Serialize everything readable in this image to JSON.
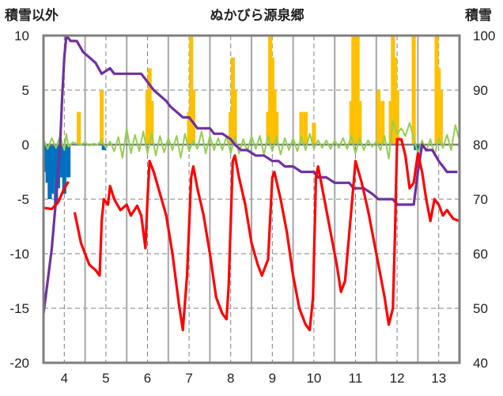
{
  "chart_data": {
    "type": "line",
    "title": "ぬかびら源泉郷",
    "left_axis_label": "積雪以外",
    "right_axis_label": "積雪",
    "x_ticks": [
      "4",
      "5",
      "6",
      "7",
      "8",
      "9",
      "10",
      "11",
      "12",
      "13"
    ],
    "y_left_ticks": [
      "10",
      "5",
      "0",
      "-5",
      "-10",
      "-15",
      "-20"
    ],
    "y_right_ticks": [
      "100",
      "90",
      "80",
      "70",
      "60",
      "50",
      "40"
    ],
    "xlim": [
      3.5,
      13.5
    ],
    "ylim_left": [
      -20,
      10
    ],
    "ylim_right": [
      40,
      100
    ],
    "grid": true,
    "colors": {
      "temperature": "#ff0000",
      "snow_depth": "#7030a0",
      "snowfall": "#ffc000",
      "rainfall": "#0070c0",
      "variation": "#92d050",
      "frame": "#7f7f7f",
      "grid": "#808080"
    },
    "series": [
      {
        "key": "temperature",
        "axis": "left",
        "values": [
          [
            3.5,
            -5.8
          ],
          [
            3.7,
            -5.9
          ],
          [
            3.85,
            -5.3
          ],
          [
            4.0,
            -4.0
          ],
          [
            4.1,
            -3.4
          ],
          [
            4.25,
            -6.2
          ],
          [
            4.4,
            -9.0
          ],
          [
            4.6,
            -11.0
          ],
          [
            4.75,
            -11.5
          ],
          [
            4.85,
            -12.0
          ],
          [
            4.9,
            -7.0
          ],
          [
            4.95,
            -5.0
          ],
          [
            5.05,
            -5.5
          ],
          [
            5.1,
            -3.8
          ],
          [
            5.2,
            -5.0
          ],
          [
            5.35,
            -6.0
          ],
          [
            5.5,
            -5.5
          ],
          [
            5.6,
            -6.5
          ],
          [
            5.75,
            -5.6
          ],
          [
            5.85,
            -6.5
          ],
          [
            5.95,
            -9.5
          ],
          [
            6.0,
            -5.0
          ],
          [
            6.05,
            -1.5
          ],
          [
            6.15,
            -2.5
          ],
          [
            6.3,
            -4.5
          ],
          [
            6.45,
            -6.5
          ],
          [
            6.6,
            -10.0
          ],
          [
            6.75,
            -14.5
          ],
          [
            6.85,
            -17.0
          ],
          [
            6.95,
            -12.0
          ],
          [
            7.05,
            -3.0
          ],
          [
            7.1,
            -2.0
          ],
          [
            7.2,
            -4.0
          ],
          [
            7.35,
            -6.5
          ],
          [
            7.5,
            -10.0
          ],
          [
            7.65,
            -14.0
          ],
          [
            7.8,
            -15.5
          ],
          [
            7.9,
            -16.0
          ],
          [
            7.95,
            -13.0
          ],
          [
            8.05,
            -1.5
          ],
          [
            8.1,
            -1.0
          ],
          [
            8.2,
            -3.0
          ],
          [
            8.35,
            -5.5
          ],
          [
            8.5,
            -9.0
          ],
          [
            8.65,
            -11.0
          ],
          [
            8.75,
            -12.0
          ],
          [
            8.9,
            -10.5
          ],
          [
            9.0,
            -3.0
          ],
          [
            9.05,
            -2.5
          ],
          [
            9.2,
            -5.0
          ],
          [
            9.35,
            -8.0
          ],
          [
            9.5,
            -12.0
          ],
          [
            9.65,
            -15.0
          ],
          [
            9.8,
            -16.5
          ],
          [
            9.9,
            -17.0
          ],
          [
            9.98,
            -14.0
          ],
          [
            10.05,
            -3.0
          ],
          [
            10.1,
            -2.0
          ],
          [
            10.25,
            -5.0
          ],
          [
            10.4,
            -8.0
          ],
          [
            10.55,
            -11.0
          ],
          [
            10.65,
            -13.5
          ],
          [
            10.75,
            -12.5
          ],
          [
            10.9,
            -6.0
          ],
          [
            11.0,
            -1.5
          ],
          [
            11.15,
            -3.5
          ],
          [
            11.3,
            -6.0
          ],
          [
            11.45,
            -9.0
          ],
          [
            11.6,
            -12.0
          ],
          [
            11.7,
            -14.0
          ],
          [
            11.8,
            -16.5
          ],
          [
            11.9,
            -15.0
          ],
          [
            11.95,
            -8.0
          ],
          [
            12.0,
            0.5
          ],
          [
            12.1,
            0.5
          ],
          [
            12.2,
            -1.0
          ],
          [
            12.3,
            -4.0
          ],
          [
            12.4,
            -3.5
          ],
          [
            12.5,
            -0.8
          ],
          [
            12.6,
            -2.5
          ],
          [
            12.7,
            -5.0
          ],
          [
            12.8,
            -7.0
          ],
          [
            12.9,
            -5.0
          ],
          [
            13.0,
            -5.5
          ],
          [
            13.1,
            -6.5
          ],
          [
            13.2,
            -6.0
          ],
          [
            13.35,
            -6.8
          ],
          [
            13.5,
            -7.0
          ]
        ]
      },
      {
        "key": "snow_depth",
        "axis": "right",
        "values": [
          [
            3.5,
            49
          ],
          [
            3.6,
            55
          ],
          [
            3.7,
            61
          ],
          [
            3.8,
            70
          ],
          [
            3.9,
            80
          ],
          [
            3.95,
            89
          ],
          [
            4.0,
            96
          ],
          [
            4.05,
            100
          ],
          [
            4.15,
            99
          ],
          [
            4.3,
            99
          ],
          [
            4.45,
            97
          ],
          [
            4.6,
            96
          ],
          [
            4.75,
            95
          ],
          [
            4.9,
            93
          ],
          [
            5.1,
            94
          ],
          [
            5.2,
            93
          ],
          [
            5.3,
            93
          ],
          [
            5.4,
            93
          ],
          [
            5.5,
            93
          ],
          [
            5.6,
            93
          ],
          [
            5.7,
            93
          ],
          [
            5.85,
            93
          ],
          [
            5.95,
            92
          ],
          [
            6.05,
            91
          ],
          [
            6.15,
            90
          ],
          [
            6.3,
            89
          ],
          [
            6.45,
            88
          ],
          [
            6.55,
            87
          ],
          [
            6.7,
            86
          ],
          [
            6.85,
            85
          ],
          [
            7.0,
            85
          ],
          [
            7.1,
            84
          ],
          [
            7.2,
            83
          ],
          [
            7.35,
            83
          ],
          [
            7.5,
            83
          ],
          [
            7.6,
            82
          ],
          [
            7.8,
            82
          ],
          [
            8.0,
            81
          ],
          [
            8.1,
            80
          ],
          [
            8.25,
            79
          ],
          [
            8.4,
            79
          ],
          [
            8.6,
            78
          ],
          [
            8.8,
            78
          ],
          [
            9.0,
            77
          ],
          [
            9.15,
            77
          ],
          [
            9.3,
            76
          ],
          [
            9.5,
            76
          ],
          [
            9.7,
            75
          ],
          [
            9.9,
            75
          ],
          [
            10.0,
            75
          ],
          [
            10.1,
            74
          ],
          [
            10.3,
            74
          ],
          [
            10.5,
            73
          ],
          [
            10.7,
            73
          ],
          [
            10.85,
            73
          ],
          [
            10.95,
            72
          ],
          [
            11.05,
            72
          ],
          [
            11.2,
            72
          ],
          [
            11.4,
            71
          ],
          [
            11.55,
            70
          ],
          [
            11.7,
            70
          ],
          [
            11.9,
            70
          ],
          [
            12.0,
            69
          ],
          [
            12.15,
            69
          ],
          [
            12.3,
            69
          ],
          [
            12.4,
            69
          ],
          [
            12.5,
            75
          ],
          [
            12.6,
            80
          ],
          [
            12.7,
            79
          ],
          [
            12.85,
            79
          ],
          [
            13.0,
            77
          ],
          [
            13.1,
            76
          ],
          [
            13.2,
            75
          ],
          [
            13.35,
            75
          ],
          [
            13.45,
            75
          ]
        ]
      },
      {
        "key": "snowfall",
        "axis": "left",
        "bars": [
          [
            4.35,
            3
          ],
          [
            4.9,
            5
          ],
          [
            6.0,
            5
          ],
          [
            6.05,
            7
          ],
          [
            6.1,
            4
          ],
          [
            7.0,
            3
          ],
          [
            7.05,
            10
          ],
          [
            7.1,
            5
          ],
          [
            8.0,
            3
          ],
          [
            8.05,
            8
          ],
          [
            8.1,
            5
          ],
          [
            8.9,
            3
          ],
          [
            8.95,
            10
          ],
          [
            9.0,
            8
          ],
          [
            9.05,
            5
          ],
          [
            9.1,
            3
          ],
          [
            9.7,
            3
          ],
          [
            9.8,
            3
          ],
          [
            10.0,
            2
          ],
          [
            10.9,
            4
          ],
          [
            10.95,
            10
          ],
          [
            11.0,
            7
          ],
          [
            11.05,
            10
          ],
          [
            11.1,
            4
          ],
          [
            11.55,
            5
          ],
          [
            11.65,
            4
          ],
          [
            11.85,
            4
          ],
          [
            11.9,
            10
          ],
          [
            11.95,
            8
          ],
          [
            12.0,
            5
          ],
          [
            12.4,
            10
          ],
          [
            12.95,
            10
          ],
          [
            13.0,
            7
          ],
          [
            13.05,
            5
          ]
        ]
      },
      {
        "key": "rainfall",
        "axis": "left",
        "bars": [
          [
            3.55,
            -2.5
          ],
          [
            3.6,
            -3.5
          ],
          [
            3.65,
            -5.0
          ],
          [
            3.7,
            -4.5
          ],
          [
            3.75,
            -3.0
          ],
          [
            3.8,
            -5.5
          ],
          [
            3.85,
            -4.0
          ],
          [
            3.9,
            -2.5
          ],
          [
            3.95,
            -3.0
          ],
          [
            4.0,
            -4.5
          ],
          [
            4.05,
            -1.5
          ],
          [
            4.1,
            -3.0
          ],
          [
            4.95,
            -0.5
          ],
          [
            12.45,
            -0.5
          ],
          [
            12.55,
            -0.5
          ]
        ]
      },
      {
        "key": "variation",
        "axis": "left",
        "values": [
          [
            3.5,
            0.5
          ],
          [
            3.6,
            -0.4
          ],
          [
            3.7,
            0.6
          ],
          [
            3.8,
            -0.3
          ],
          [
            3.9,
            0.8
          ],
          [
            4.0,
            -0.5
          ],
          [
            4.05,
            1.0
          ],
          [
            4.1,
            -0.2
          ],
          [
            4.2,
            0.2
          ],
          [
            4.3,
            0.1
          ],
          [
            4.4,
            0.0
          ],
          [
            4.5,
            0.2
          ],
          [
            4.6,
            -0.1
          ],
          [
            4.7,
            0.1
          ],
          [
            4.8,
            0.0
          ],
          [
            4.9,
            0.4
          ],
          [
            5.0,
            -0.3
          ],
          [
            5.1,
            0.3
          ],
          [
            5.2,
            -0.6
          ],
          [
            5.3,
            0.7
          ],
          [
            5.4,
            -1.2
          ],
          [
            5.5,
            1.5
          ],
          [
            5.6,
            -0.8
          ],
          [
            5.7,
            0.9
          ],
          [
            5.8,
            -0.6
          ],
          [
            5.9,
            1.2
          ],
          [
            6.0,
            -0.8
          ],
          [
            6.1,
            1.0
          ],
          [
            6.2,
            -1.0
          ],
          [
            6.3,
            0.8
          ],
          [
            6.4,
            -0.7
          ],
          [
            6.5,
            0.6
          ],
          [
            6.6,
            -0.5
          ],
          [
            6.7,
            0.8
          ],
          [
            6.8,
            -1.2
          ],
          [
            6.9,
            1.0
          ],
          [
            7.0,
            -0.6
          ],
          [
            7.1,
            0.4
          ],
          [
            7.2,
            -0.4
          ],
          [
            7.3,
            1.2
          ],
          [
            7.4,
            -0.8
          ],
          [
            7.5,
            0.8
          ],
          [
            7.6,
            -0.5
          ],
          [
            7.7,
            0.6
          ],
          [
            7.8,
            -0.5
          ],
          [
            7.9,
            0.8
          ],
          [
            8.0,
            -0.8
          ],
          [
            8.1,
            0.7
          ],
          [
            8.2,
            -0.8
          ],
          [
            8.3,
            0.5
          ],
          [
            8.4,
            -0.6
          ],
          [
            8.5,
            0.8
          ],
          [
            8.6,
            -0.4
          ],
          [
            8.7,
            0.8
          ],
          [
            8.8,
            -0.9
          ],
          [
            8.9,
            0.8
          ],
          [
            9.0,
            -0.6
          ],
          [
            9.1,
            0.7
          ],
          [
            9.2,
            -0.9
          ],
          [
            9.3,
            0.6
          ],
          [
            9.4,
            -0.5
          ],
          [
            9.5,
            0.6
          ],
          [
            9.6,
            -0.6
          ],
          [
            9.7,
            0.7
          ],
          [
            9.8,
            -0.5
          ],
          [
            9.9,
            1.0
          ],
          [
            10.0,
            -0.4
          ],
          [
            10.1,
            0.4
          ],
          [
            10.2,
            -0.3
          ],
          [
            10.3,
            0.4
          ],
          [
            10.4,
            -0.4
          ],
          [
            10.5,
            0.4
          ],
          [
            10.6,
            -0.3
          ],
          [
            10.7,
            0.6
          ],
          [
            10.8,
            -0.4
          ],
          [
            10.9,
            0.8
          ],
          [
            11.0,
            -0.8
          ],
          [
            11.1,
            0.6
          ],
          [
            11.2,
            -0.5
          ],
          [
            11.3,
            0.4
          ],
          [
            11.4,
            -0.2
          ],
          [
            11.5,
            0.3
          ],
          [
            11.6,
            -0.5
          ],
          [
            11.7,
            0.8
          ],
          [
            11.8,
            -1.3
          ],
          [
            11.9,
            2.2
          ],
          [
            12.0,
            1.0
          ],
          [
            12.1,
            1.5
          ],
          [
            12.2,
            0.8
          ],
          [
            12.3,
            2.0
          ],
          [
            12.4,
            0.6
          ],
          [
            12.5,
            -0.8
          ],
          [
            12.6,
            0.4
          ],
          [
            12.7,
            -0.6
          ],
          [
            12.8,
            0.5
          ],
          [
            12.9,
            -1.0
          ],
          [
            13.0,
            0.6
          ],
          [
            13.1,
            -0.3
          ],
          [
            13.2,
            0.9
          ],
          [
            13.3,
            -0.5
          ],
          [
            13.4,
            1.8
          ],
          [
            13.5,
            0.4
          ]
        ]
      }
    ]
  }
}
